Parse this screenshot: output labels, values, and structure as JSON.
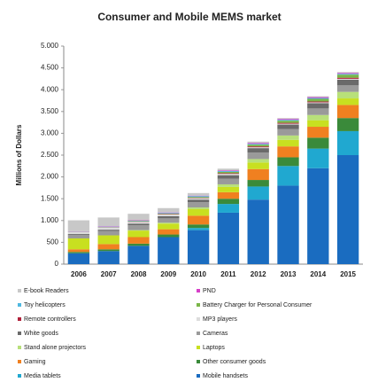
{
  "chart_data": {
    "type": "stacked-bar",
    "title": "Consumer and Mobile MEMS market",
    "y_label": "Millions of Dollars",
    "categories": [
      "2006",
      "2007",
      "2008",
      "2009",
      "2010",
      "2011",
      "2012",
      "2013",
      "2014",
      "2015"
    ],
    "ylim": [
      0,
      5000
    ],
    "yticks": [
      0,
      500,
      {
        "value": 1000,
        "label": "1.000"
      },
      {
        "value": 1500,
        "label": "1.500"
      },
      {
        "value": 2000,
        "label": "2.000"
      },
      {
        "value": 2500,
        "label": "2.500"
      },
      {
        "value": 3000,
        "label": "3.000"
      },
      {
        "value": 3500,
        "label": "3.500"
      },
      {
        "value": 4000,
        "label": "4.000"
      },
      {
        "value": 4500,
        "label": "4.500"
      },
      {
        "value": 5000,
        "label": "5.000"
      }
    ],
    "grid": false,
    "series": [
      {
        "name": "E-book Readers",
        "color": "#c8c8c8",
        "values": [
          250,
          200,
          150,
          100,
          60,
          40,
          30,
          20,
          20,
          20
        ]
      },
      {
        "name": "PND",
        "color": "#d63fc8",
        "values": [
          5,
          10,
          10,
          10,
          10,
          15,
          20,
          20,
          20,
          20
        ]
      },
      {
        "name": "Toy helicopters",
        "color": "#4fb8e0",
        "values": [
          5,
          10,
          10,
          15,
          20,
          20,
          20,
          20,
          20,
          20
        ]
      },
      {
        "name": "Battery Charger for Personal Consumer",
        "color": "#7ab648",
        "values": [
          0,
          5,
          10,
          10,
          20,
          30,
          40,
          50,
          60,
          70
        ]
      },
      {
        "name": "Remote controllers",
        "color": "#b0203a",
        "values": [
          5,
          5,
          5,
          10,
          10,
          15,
          20,
          20,
          20,
          25
        ]
      },
      {
        "name": "MP3 players",
        "color": "#dcdcdc",
        "values": [
          50,
          50,
          40,
          40,
          30,
          30,
          20,
          20,
          20,
          20
        ]
      },
      {
        "name": "White goods",
        "color": "#6a6a6a",
        "values": [
          20,
          30,
          40,
          50,
          60,
          80,
          100,
          100,
          120,
          130
        ]
      },
      {
        "name": "Cameras",
        "color": "#9a9a9a",
        "values": [
          80,
          100,
          110,
          100,
          120,
          130,
          150,
          150,
          150,
          150
        ]
      },
      {
        "name": "Stand alone projectors",
        "color": "#b8e07a",
        "values": [
          0,
          0,
          10,
          20,
          40,
          60,
          80,
          100,
          120,
          150
        ]
      },
      {
        "name": "Laptops",
        "color": "#c8e020",
        "values": [
          250,
          200,
          150,
          130,
          150,
          120,
          150,
          150,
          150,
          150
        ]
      },
      {
        "name": "Gaming",
        "color": "#f08020",
        "values": [
          60,
          120,
          150,
          120,
          200,
          150,
          250,
          250,
          250,
          300
        ]
      },
      {
        "name": "Other consumer goods",
        "color": "#3a8a3a",
        "values": [
          30,
          40,
          50,
          60,
          80,
          120,
          150,
          200,
          250,
          300
        ]
      },
      {
        "name": "Media tablets",
        "color": "#20a8d0",
        "values": [
          0,
          0,
          0,
          0,
          50,
          200,
          300,
          450,
          450,
          550
        ]
      },
      {
        "name": "Mobile handsets",
        "color": "#1a6cc0",
        "values": [
          250,
          300,
          420,
          620,
          780,
          1180,
          1480,
          1800,
          2200,
          2500
        ]
      }
    ]
  }
}
